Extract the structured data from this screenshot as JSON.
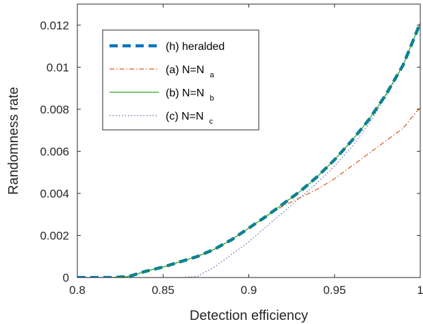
{
  "chart_data": {
    "type": "line",
    "title": "",
    "xlabel": "Detection efficiency",
    "ylabel": "Randomness rate",
    "xlim": [
      0.8,
      1.0
    ],
    "ylim": [
      0,
      0.013
    ],
    "x_ticks": [
      0.8,
      0.85,
      0.9,
      0.95,
      1.0
    ],
    "x_tick_labels": [
      "0.8",
      "0.85",
      "0.9",
      "0.95",
      "1"
    ],
    "y_ticks": [
      0,
      0.002,
      0.004,
      0.006,
      0.008,
      0.01,
      0.012
    ],
    "y_tick_labels": [
      "0",
      "0.002",
      "0.004",
      "0.006",
      "0.008",
      "0.01",
      "0.012"
    ],
    "grid": false,
    "legend_position": "top-left",
    "series": [
      {
        "name": "(h) heralded",
        "label_main": "(h) heralded",
        "label_sub": "",
        "color": "#0072BD",
        "style": "dashed-thick",
        "x": [
          0.8,
          0.81,
          0.82,
          0.83,
          0.84,
          0.85,
          0.86,
          0.87,
          0.88,
          0.89,
          0.9,
          0.91,
          0.92,
          0.93,
          0.94,
          0.95,
          0.96,
          0.97,
          0.98,
          0.99,
          1.0
        ],
        "y": [
          0,
          0,
          0,
          5e-05,
          0.0003,
          0.0005,
          0.00075,
          0.001,
          0.00135,
          0.0018,
          0.00235,
          0.0029,
          0.0035,
          0.0041,
          0.0048,
          0.0056,
          0.0065,
          0.0075,
          0.0087,
          0.0101,
          0.0121
        ]
      },
      {
        "name": "(a) N=N a",
        "label_main": "(a) N=N",
        "label_sub": "a",
        "color": "#D95319",
        "style": "dashdot",
        "x": [
          0.8,
          0.81,
          0.82,
          0.83,
          0.84,
          0.85,
          0.86,
          0.87,
          0.88,
          0.89,
          0.9,
          0.91,
          0.92,
          0.93,
          0.94,
          0.95,
          0.96,
          0.97,
          0.98,
          0.99,
          1.0
        ],
        "y": [
          0,
          0,
          0,
          5e-05,
          0.0003,
          0.0005,
          0.00075,
          0.001,
          0.00135,
          0.0018,
          0.00235,
          0.0029,
          0.0034,
          0.0038,
          0.0042,
          0.0047,
          0.0053,
          0.0059,
          0.0065,
          0.0071,
          0.0081
        ]
      },
      {
        "name": "(b) N=N b",
        "label_main": "(b) N=N",
        "label_sub": "b",
        "color": "#22A022",
        "style": "solid",
        "x": [
          0.8,
          0.81,
          0.82,
          0.83,
          0.84,
          0.85,
          0.86,
          0.87,
          0.88,
          0.89,
          0.9,
          0.91,
          0.92,
          0.93,
          0.94,
          0.95,
          0.96,
          0.97,
          0.98,
          0.99,
          1.0
        ],
        "y": [
          0,
          0,
          0,
          5e-05,
          0.0003,
          0.0005,
          0.00075,
          0.001,
          0.00135,
          0.0018,
          0.00235,
          0.0029,
          0.0035,
          0.0041,
          0.0048,
          0.0056,
          0.0065,
          0.0075,
          0.0087,
          0.0101,
          0.0121
        ]
      },
      {
        "name": "(c) N=N c",
        "label_main": "(c) N=N",
        "label_sub": "c",
        "color": "#5B5BA8",
        "style": "dotted",
        "x": [
          0.8,
          0.82,
          0.84,
          0.86,
          0.87,
          0.88,
          0.89,
          0.9,
          0.91,
          0.92,
          0.93,
          0.94,
          0.95,
          0.96,
          0.97,
          0.98,
          0.99,
          1.0
        ],
        "y": [
          0,
          0,
          0,
          0,
          5e-05,
          0.0005,
          0.0011,
          0.0017,
          0.0024,
          0.0031,
          0.0038,
          0.0045,
          0.0053,
          0.0062,
          0.0073,
          0.0086,
          0.0101,
          0.0121
        ]
      }
    ]
  }
}
